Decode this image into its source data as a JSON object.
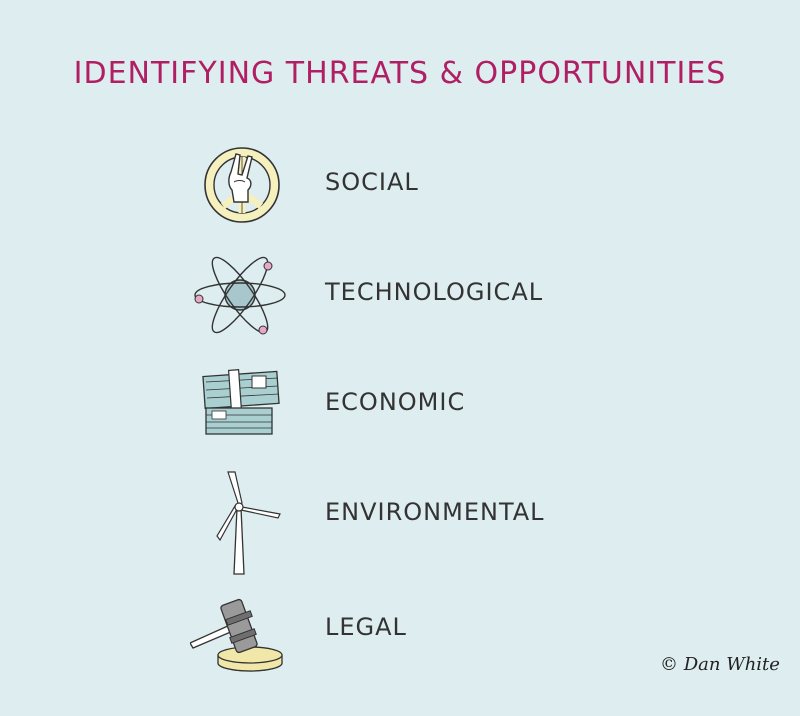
{
  "title": "IDENTIFYING THREATS & OPPORTUNITIES",
  "items": [
    {
      "label": "SOCIAL",
      "icon": "peace-hand-icon"
    },
    {
      "label": "TECHNOLOGICAL",
      "icon": "atom-icon"
    },
    {
      "label": "ECONOMIC",
      "icon": "money-stack-icon"
    },
    {
      "label": "ENVIRONMENTAL",
      "icon": "wind-turbine-icon"
    },
    {
      "label": "LEGAL",
      "icon": "gavel-icon"
    }
  ],
  "credit": "© Dan White",
  "colors": {
    "background": "#deedf0",
    "title": "#b01f63",
    "label": "#333333",
    "peace_fill": "#f6efbe",
    "atom_fill": "#a8c7cc",
    "atom_electron": "#e8a8c8",
    "money_fill": "#a9cfd0",
    "gavel_base": "#f0e7a8"
  }
}
